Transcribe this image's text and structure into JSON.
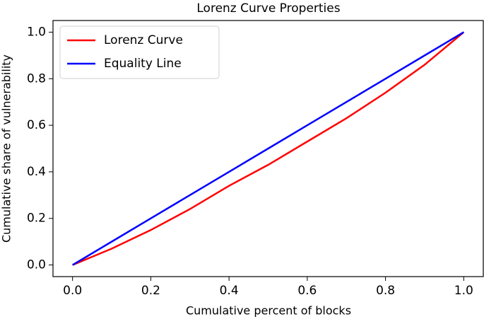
{
  "chart_data": {
    "type": "line",
    "title": "Lorenz Curve Properties",
    "x_label": "Cumulative percent of blocks",
    "y_label": "Cumulative share of vulnerability",
    "x": [
      0,
      0.1,
      0.2,
      0.3,
      0.4,
      0.5,
      0.6,
      0.7,
      0.8,
      0.9,
      1.0
    ],
    "series": [
      {
        "name": "Lorenz Curve",
        "color": "#ff0000",
        "values": [
          0,
          0.07,
          0.15,
          0.24,
          0.34,
          0.43,
          0.53,
          0.63,
          0.74,
          0.86,
          1.0
        ]
      },
      {
        "name": "Equality Line",
        "color": "#0000ff",
        "values": [
          0,
          0.1,
          0.2,
          0.3,
          0.4,
          0.5,
          0.6,
          0.7,
          0.8,
          0.9,
          1.0
        ]
      }
    ],
    "xlim": [
      -0.05,
      1.05
    ],
    "ylim": [
      -0.05,
      1.05
    ],
    "xticks": [
      {
        "value": 0,
        "label": "0.0"
      },
      {
        "value": 0.2,
        "label": "0.2"
      },
      {
        "value": 0.4,
        "label": "0.4"
      },
      {
        "value": 0.6,
        "label": "0.6"
      },
      {
        "value": 0.8,
        "label": "0.8"
      },
      {
        "value": 1.0,
        "label": "1.0"
      }
    ],
    "yticks": [
      {
        "value": 0,
        "label": "0.0"
      },
      {
        "value": 0.2,
        "label": "0.2"
      },
      {
        "value": 0.4,
        "label": "0.4"
      },
      {
        "value": 0.6,
        "label": "0.6"
      },
      {
        "value": 0.8,
        "label": "0.8"
      },
      {
        "value": 1.0,
        "label": "1.0"
      }
    ],
    "legend": "upper left",
    "grid": false
  }
}
